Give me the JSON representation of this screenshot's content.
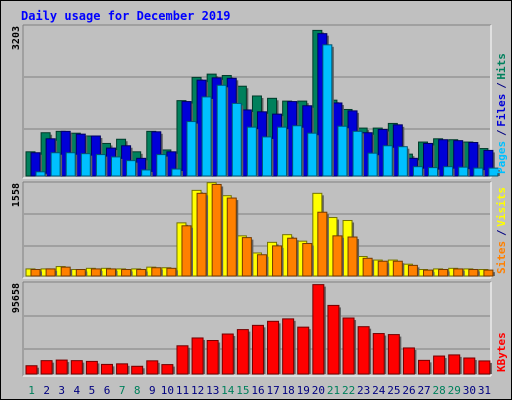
{
  "title": "Daily usage for December 2019",
  "colors": {
    "hits": "#00805c",
    "files": "#0000d8",
    "pages": "#00c0ff",
    "visits": "#ffff00",
    "sites": "#ff8000",
    "kbytes": "#ff0000",
    "weekend_day": "#00805c",
    "weekday": "#000080",
    "title": "#0000ff",
    "panel": "#c0c0c0",
    "gridline": "#808080"
  },
  "chart_data": [
    {
      "type": "bar",
      "name": "hits-files-pages",
      "categories": [
        "1",
        "2",
        "3",
        "4",
        "5",
        "6",
        "7",
        "8",
        "9",
        "10",
        "11",
        "12",
        "13",
        "14",
        "15",
        "16",
        "17",
        "18",
        "19",
        "20",
        "21",
        "22",
        "23",
        "24",
        "25",
        "26",
        "27",
        "28",
        "29",
        "30",
        "31"
      ],
      "y_tick_labels": [
        "3203"
      ],
      "ylim": [
        0,
        3203
      ],
      "series": [
        {
          "name": "Hits",
          "key": "hits",
          "values": [
            520,
            930,
            960,
            920,
            860,
            700,
            790,
            520,
            960,
            560,
            1620,
            2120,
            2190,
            2160,
            1930,
            1720,
            1670,
            1610,
            1610,
            3130,
            1630,
            1430,
            1030,
            1030,
            1130,
            470,
            730,
            800,
            780,
            730,
            590
          ]
        },
        {
          "name": "Files",
          "key": "files",
          "values": [
            500,
            800,
            960,
            900,
            860,
            600,
            650,
            380,
            950,
            520,
            1600,
            2060,
            2110,
            2100,
            1420,
            1380,
            1330,
            1600,
            1510,
            3060,
            1570,
            1400,
            930,
            1000,
            1100,
            380,
            700,
            780,
            760,
            720,
            550
          ]
        },
        {
          "name": "Pages",
          "key": "pages",
          "values": [
            90,
            500,
            500,
            480,
            460,
            410,
            330,
            130,
            460,
            150,
            1170,
            1700,
            1950,
            1560,
            1050,
            840,
            1050,
            1080,
            920,
            2820,
            1070,
            960,
            490,
            650,
            630,
            200,
            180,
            200,
            190,
            170,
            170
          ]
        }
      ]
    },
    {
      "type": "bar",
      "name": "visits-sites",
      "categories": [
        "1",
        "2",
        "3",
        "4",
        "5",
        "6",
        "7",
        "8",
        "9",
        "10",
        "11",
        "12",
        "13",
        "14",
        "15",
        "16",
        "17",
        "18",
        "19",
        "20",
        "21",
        "22",
        "23",
        "24",
        "25",
        "26",
        "27",
        "28",
        "29",
        "30",
        "31"
      ],
      "y_tick_labels": [
        "1558"
      ],
      "ylim": [
        0,
        1558
      ],
      "series": [
        {
          "name": "Visits",
          "key": "visits",
          "values": [
            120,
            120,
            160,
            110,
            130,
            130,
            120,
            120,
            150,
            140,
            900,
            1450,
            1580,
            1360,
            680,
            390,
            570,
            700,
            590,
            1400,
            990,
            940,
            330,
            270,
            270,
            200,
            110,
            120,
            130,
            120,
            110
          ]
        },
        {
          "name": "Sites",
          "key": "sites",
          "values": [
            110,
            120,
            150,
            110,
            120,
            120,
            110,
            110,
            140,
            130,
            850,
            1400,
            1550,
            1320,
            650,
            360,
            510,
            640,
            550,
            1080,
            680,
            660,
            300,
            250,
            250,
            180,
            100,
            110,
            120,
            110,
            100
          ]
        }
      ]
    },
    {
      "type": "bar",
      "name": "kbytes",
      "categories": [
        "1",
        "2",
        "3",
        "4",
        "5",
        "6",
        "7",
        "8",
        "9",
        "10",
        "11",
        "12",
        "13",
        "14",
        "15",
        "16",
        "17",
        "18",
        "19",
        "20",
        "21",
        "22",
        "23",
        "24",
        "25",
        "26",
        "27",
        "28",
        "29",
        "30",
        "31"
      ],
      "y_tick_labels": [
        "95658"
      ],
      "ylim": [
        0,
        95658
      ],
      "series": [
        {
          "name": "KBytes",
          "key": "kbytes",
          "values": [
            8800,
            14200,
            14800,
            14200,
            13400,
            10200,
            10800,
            8200,
            14000,
            10000,
            30000,
            38300,
            35600,
            42500,
            47200,
            51700,
            56000,
            58600,
            49800,
            95000,
            72900,
            59500,
            50300,
            43000,
            41900,
            27700,
            14500,
            19100,
            20300,
            17000,
            13900
          ]
        }
      ]
    }
  ],
  "legends": {
    "hits_files_pages": [
      {
        "label": "Hits",
        "key": "hits"
      },
      {
        "label": "/",
        "key": "weekday"
      },
      {
        "label": "Files",
        "key": "files"
      },
      {
        "label": "/",
        "key": "weekday"
      },
      {
        "label": "Pages",
        "key": "pages"
      }
    ],
    "visits_sites": [
      {
        "label": "Visits",
        "key": "visits"
      },
      {
        "label": "/",
        "key": "weekday"
      },
      {
        "label": "Sites",
        "key": "sites"
      }
    ],
    "kbytes": [
      {
        "label": "KBytes",
        "key": "kbytes"
      }
    ]
  },
  "weekend_days": [
    "1",
    "7",
    "8",
    "14",
    "15",
    "21",
    "22",
    "28",
    "29"
  ]
}
